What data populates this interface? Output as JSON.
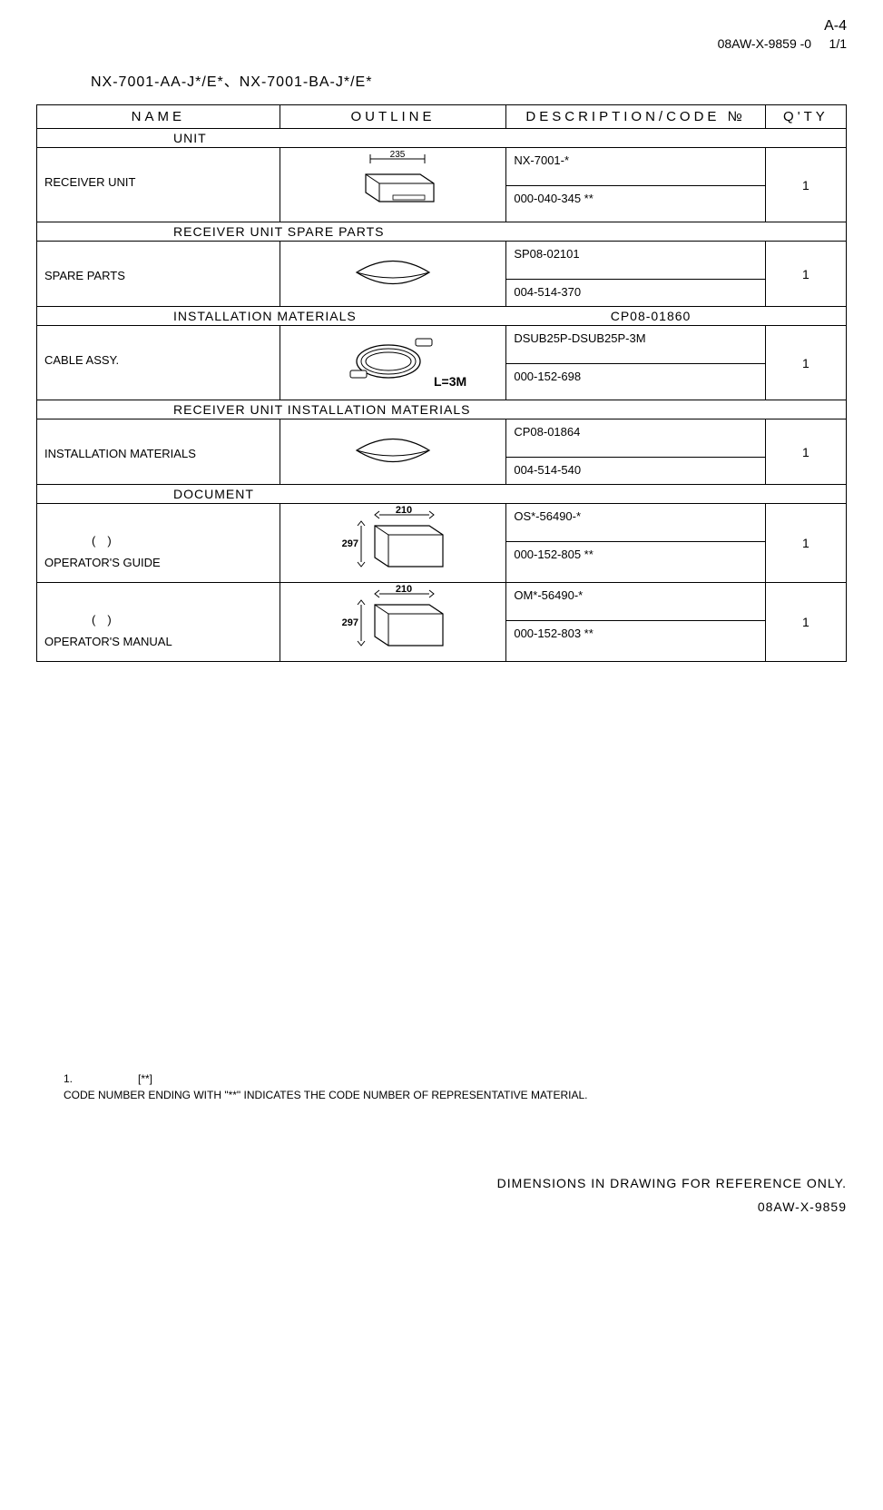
{
  "meta": {
    "page_id": "A-4",
    "doc_code": "08AW-X-9859 -0",
    "page_num": "1/1",
    "model_line": "NX-7001-AA-J*/E*、NX-7001-BA-J*/E*"
  },
  "headers": {
    "name": "NAME",
    "outline": "OUTLINE",
    "description": "DESCRIPTION/CODE №",
    "qty": "Q'TY"
  },
  "sections": [
    {
      "label": "UNIT",
      "extra": "",
      "items": [
        {
          "name": "RECEIVER UNIT",
          "paren": "",
          "desc_top": "NX-7001-*",
          "desc_bottom": "000-040-345 **",
          "qty": "1",
          "outline_type": "box",
          "dim_label": "235"
        }
      ]
    },
    {
      "label": "RECEIVER UNIT SPARE PARTS",
      "extra": "",
      "items": [
        {
          "name": "SPARE PARTS",
          "paren": "",
          "desc_top": "SP08-02101",
          "desc_bottom": "004-514-370",
          "qty": "1",
          "outline_type": "pouch"
        }
      ]
    },
    {
      "label": "INSTALLATION MATERIALS",
      "extra": "CP08-01860",
      "items": [
        {
          "name": "CABLE ASSY.",
          "paren": "",
          "desc_top": "DSUB25P-DSUB25P-3M",
          "desc_bottom": "000-152-698",
          "qty": "1",
          "outline_type": "cable",
          "dim_label": "L=3M"
        }
      ]
    },
    {
      "label": "RECEIVER UNIT INSTALLATION MATERIALS",
      "extra": "",
      "items": [
        {
          "name": "INSTALLATION MATERIALS",
          "paren": "",
          "desc_top": "CP08-01864",
          "desc_bottom": "004-514-540",
          "qty": "1",
          "outline_type": "pouch"
        }
      ]
    },
    {
      "label": "DOCUMENT",
      "extra": "",
      "items": [
        {
          "name": "OPERATOR'S GUIDE",
          "paren": "(　)",
          "desc_top": "OS*-56490-*",
          "desc_bottom": "000-152-805 **",
          "qty": "1",
          "outline_type": "book",
          "dim_w": "210",
          "dim_h": "297"
        },
        {
          "name": "OPERATOR'S MANUAL",
          "paren": "(　)",
          "desc_top": "OM*-56490-*",
          "desc_bottom": "000-152-803 **",
          "qty": "1",
          "outline_type": "book",
          "dim_w": "210",
          "dim_h": "297"
        }
      ]
    }
  ],
  "footnote": {
    "line1": "1.　　　　　　[**]",
    "line2": "CODE NUMBER ENDING WITH \"**\" INDICATES THE CODE NUMBER OF REPRESENTATIVE MATERIAL."
  },
  "footer": {
    "text": "DIMENSIONS IN DRAWING FOR REFERENCE ONLY.",
    "code": "08AW-X-9859"
  },
  "style": {
    "border_color": "#000000",
    "bg_color": "#ffffff",
    "text_color": "#000000"
  }
}
